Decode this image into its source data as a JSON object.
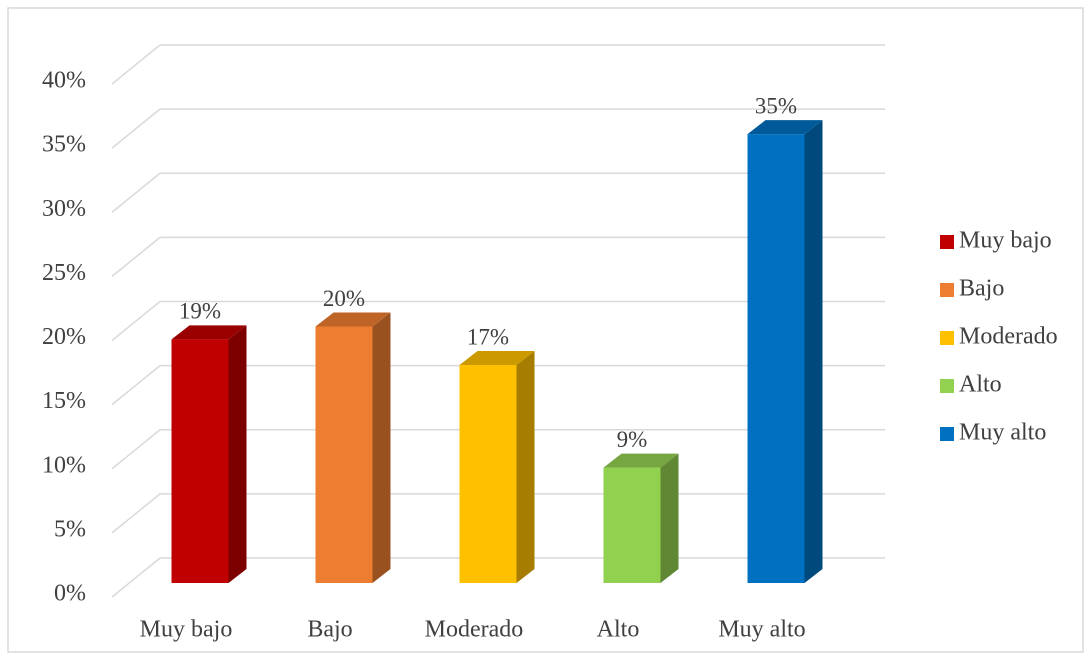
{
  "chart_data": {
    "type": "bar3d",
    "categories": [
      "Muy bajo",
      "Bajo",
      "Moderado",
      "Alto",
      "Muy alto"
    ],
    "values": [
      19,
      20,
      17,
      9,
      35
    ],
    "value_labels": [
      "19%",
      "20%",
      "17%",
      "9%",
      "35%"
    ],
    "colors": [
      "#c00000",
      "#ed7d31",
      "#ffc000",
      "#92d050",
      "#0070c0"
    ],
    "ylim": [
      0,
      40
    ],
    "yticks": [
      {
        "value": 0,
        "label": "0%"
      },
      {
        "value": 5,
        "label": "5%"
      },
      {
        "value": 10,
        "label": "10%"
      },
      {
        "value": 15,
        "label": "15%"
      },
      {
        "value": 20,
        "label": "20%"
      },
      {
        "value": 25,
        "label": "25%"
      },
      {
        "value": 30,
        "label": "30%"
      },
      {
        "value": 35,
        "label": "35%"
      },
      {
        "value": 40,
        "label": "40%"
      }
    ],
    "grid": true,
    "legend": "right"
  }
}
